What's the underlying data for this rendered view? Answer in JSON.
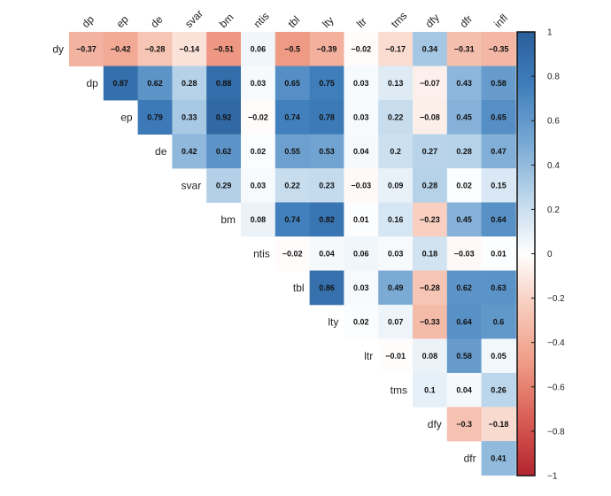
{
  "chart_data": {
    "type": "heatmap",
    "variables": [
      "dy",
      "dp",
      "ep",
      "de",
      "svar",
      "bm",
      "ntis",
      "tbl",
      "lty",
      "ltr",
      "tms",
      "dfy",
      "dfr",
      "infl"
    ],
    "matrix": [
      [
        -0.37,
        -0.42,
        -0.28,
        -0.14,
        -0.51,
        0.06,
        -0.5,
        -0.39,
        -0.02,
        -0.17,
        0.34,
        -0.31,
        -0.35
      ],
      [
        0.87,
        0.62,
        0.28,
        0.88,
        0.03,
        0.65,
        0.75,
        0.03,
        0.13,
        -0.07,
        0.43,
        0.58
      ],
      [
        0.79,
        0.33,
        0.92,
        -0.02,
        0.74,
        0.78,
        0.03,
        0.22,
        -0.08,
        0.45,
        0.65
      ],
      [
        0.42,
        0.62,
        0.02,
        0.55,
        0.53,
        0.04,
        0.2,
        0.27,
        0.28,
        0.47
      ],
      [
        0.29,
        0.03,
        0.22,
        0.23,
        -0.03,
        0.09,
        0.28,
        0.02,
        0.15
      ],
      [
        0.08,
        0.74,
        0.82,
        0.01,
        0.16,
        -0.23,
        0.45,
        0.64
      ],
      [
        -0.02,
        0.04,
        0.06,
        0.03,
        0.18,
        -0.03,
        0.01
      ],
      [
        0.86,
        0.03,
        0.49,
        -0.28,
        0.62,
        0.63
      ],
      [
        0.02,
        0.07,
        -0.33,
        0.64,
        0.6
      ],
      [
        -0.01,
        0.08,
        0.58,
        0.05
      ],
      [
        0.1,
        0.04,
        0.26
      ],
      [
        -0.3,
        -0.18
      ],
      [
        0.41
      ]
    ],
    "colorbar_ticks": [
      "1",
      "0.8",
      "0.6",
      "0.4",
      "0.2",
      "0",
      "−0.2",
      "−0.4",
      "−0.6",
      "−0.8",
      "−1"
    ],
    "colorbar_range": [
      -1,
      1
    ],
    "colors": {
      "negative": "#b2182b",
      "neutral": "#ffffff",
      "positive": "#2166ac"
    }
  }
}
